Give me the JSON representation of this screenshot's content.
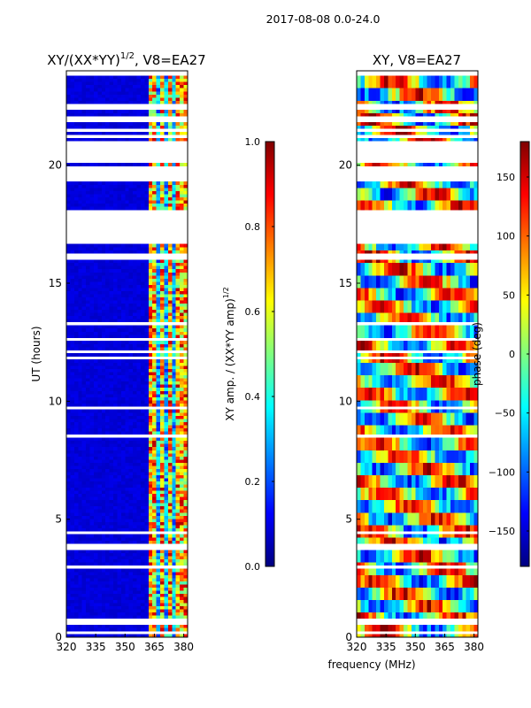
{
  "figure_title": "2017-08-08 0.0-24.0",
  "shared_xlabel": "frequency (MHz)",
  "colormap": {
    "name": "jet",
    "stops": [
      "#00007f",
      "#0000ff",
      "#007fff",
      "#00ffff",
      "#7fff7f",
      "#ffff00",
      "#ff7f00",
      "#ff0000",
      "#7f0000"
    ]
  },
  "chart_data": [
    {
      "type": "heatmap",
      "title_main": "XY/(XX*YY)",
      "title_exp": "1/2",
      "title_tail": ", V8=EA27",
      "xlabel": "",
      "ylabel": "UT (hours)",
      "x_range": [
        320,
        382
      ],
      "y_range": [
        0,
        24
      ],
      "x_ticks": [
        320,
        335,
        350,
        365,
        380
      ],
      "y_ticks": [
        0,
        5,
        10,
        15,
        20
      ],
      "colorbar": {
        "label_main": "XY amp. / (XX*YY amp)",
        "label_exp": "1/2",
        "range": [
          0.0,
          1.0
        ],
        "ticks": [
          0.0,
          0.2,
          0.4,
          0.6,
          0.8,
          1.0
        ],
        "tick_labels": [
          "0.0",
          "0.2",
          "0.4",
          "0.6",
          "0.8",
          "1.0"
        ]
      },
      "data_extent_hours": [
        0,
        23.8
      ],
      "flagged_hour_ranges": [
        [
          3.6,
          3.85
        ],
        [
          16.6,
          17.7
        ],
        [
          17.8,
          18.1
        ],
        [
          19.2,
          19.9
        ],
        [
          20.05,
          21.0
        ],
        [
          21.7,
          22.0
        ],
        [
          22.3,
          22.5
        ]
      ],
      "bright_channels_mhz": [
        [
          363,
          365.5
        ],
        [
          368.5,
          370
        ],
        [
          372,
          374
        ],
        [
          376.5,
          378
        ],
        [
          379.5,
          380.5
        ]
      ],
      "notes": "Amplitude near 0 below ~363 MHz; bright features 0.6-1.0 concentrated between 363 and 381 MHz, strongest at 4-8 h and 10-15 h"
    },
    {
      "type": "heatmap",
      "title_main": "XY, V8=EA27",
      "xlabel": "",
      "ylabel": "",
      "x_range": [
        320,
        382
      ],
      "y_range": [
        0,
        24
      ],
      "x_ticks": [
        320,
        335,
        350,
        365,
        380
      ],
      "y_ticks": [
        0,
        5,
        10,
        15,
        20
      ],
      "colorbar": {
        "label_main": "phase (deg)",
        "range": [
          -180,
          180
        ],
        "ticks": [
          -150,
          -100,
          -50,
          0,
          50,
          100,
          150
        ],
        "tick_labels": [
          "−150",
          "−100",
          "−50",
          "0",
          "50",
          "100",
          "150"
        ]
      },
      "data_extent_hours": [
        0,
        23.8
      ],
      "flagged_hour_ranges": [
        [
          3.6,
          3.85
        ],
        [
          16.6,
          17.7
        ],
        [
          17.8,
          18.1
        ],
        [
          19.2,
          19.9
        ],
        [
          20.05,
          21.0
        ],
        [
          21.7,
          22.0
        ],
        [
          22.3,
          22.5
        ]
      ],
      "notes": "Phase spans -180 to 180 deg with horizontal banding over time and frequency"
    }
  ]
}
